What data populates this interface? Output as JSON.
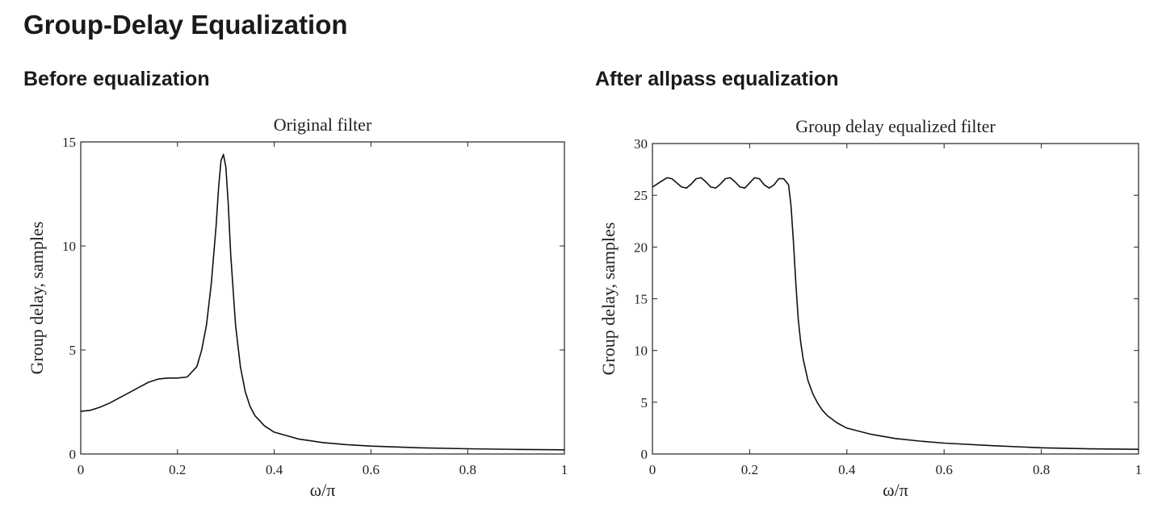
{
  "page": {
    "title": "Group-Delay Equalization"
  },
  "panels": [
    {
      "heading": "Before equalization"
    },
    {
      "heading": "After allpass equalization"
    }
  ],
  "chart_data": [
    {
      "type": "line",
      "title": "Original filter",
      "xlabel": "ω/π",
      "ylabel": "Group delay, samples",
      "xlim": [
        0,
        1
      ],
      "ylim": [
        0,
        15
      ],
      "xticks": [
        "0",
        "0.2",
        "0.4",
        "0.6",
        "0.8",
        "1"
      ],
      "yticks": [
        "0",
        "5",
        "10",
        "15"
      ],
      "grid": false,
      "series": [
        {
          "x": [
            0,
            0.02,
            0.04,
            0.06,
            0.08,
            0.1,
            0.12,
            0.14,
            0.16,
            0.18,
            0.2,
            0.22,
            0.24,
            0.25,
            0.26,
            0.27,
            0.28,
            0.285,
            0.29,
            0.295,
            0.3,
            0.305,
            0.31,
            0.32,
            0.33,
            0.34,
            0.35,
            0.36,
            0.38,
            0.4,
            0.45,
            0.5,
            0.55,
            0.6,
            0.7,
            0.8,
            0.9,
            1.0
          ],
          "values": [
            2.05,
            2.1,
            2.25,
            2.45,
            2.7,
            2.95,
            3.2,
            3.45,
            3.6,
            3.65,
            3.65,
            3.7,
            4.2,
            5.0,
            6.2,
            8.2,
            11.0,
            12.8,
            14.1,
            14.4,
            13.8,
            12.0,
            9.6,
            6.2,
            4.2,
            3.0,
            2.3,
            1.85,
            1.35,
            1.05,
            0.72,
            0.55,
            0.45,
            0.38,
            0.3,
            0.25,
            0.22,
            0.2
          ]
        }
      ]
    },
    {
      "type": "line",
      "title": "Group delay equalized filter",
      "xlabel": "ω/π",
      "ylabel": "Group delay, samples",
      "xlim": [
        0,
        1
      ],
      "ylim": [
        0,
        30
      ],
      "xticks": [
        "0",
        "0.2",
        "0.4",
        "0.6",
        "0.8",
        "1"
      ],
      "yticks": [
        "0",
        "5",
        "10",
        "15",
        "20",
        "25",
        "30"
      ],
      "grid": false,
      "series": [
        {
          "x": [
            0,
            0.01,
            0.02,
            0.03,
            0.04,
            0.05,
            0.06,
            0.07,
            0.08,
            0.09,
            0.1,
            0.11,
            0.12,
            0.13,
            0.14,
            0.15,
            0.16,
            0.17,
            0.18,
            0.19,
            0.2,
            0.21,
            0.22,
            0.23,
            0.24,
            0.25,
            0.26,
            0.27,
            0.28,
            0.285,
            0.29,
            0.295,
            0.3,
            0.305,
            0.31,
            0.32,
            0.33,
            0.34,
            0.35,
            0.36,
            0.38,
            0.4,
            0.45,
            0.5,
            0.55,
            0.6,
            0.7,
            0.8,
            0.9,
            1.0
          ],
          "values": [
            25.8,
            26.1,
            26.4,
            26.7,
            26.6,
            26.2,
            25.8,
            25.7,
            26.1,
            26.6,
            26.7,
            26.3,
            25.8,
            25.7,
            26.1,
            26.6,
            26.7,
            26.3,
            25.8,
            25.7,
            26.2,
            26.7,
            26.6,
            26.0,
            25.7,
            26.0,
            26.6,
            26.6,
            26.0,
            24.0,
            20.5,
            16.5,
            13.0,
            10.8,
            9.2,
            7.1,
            5.8,
            4.9,
            4.2,
            3.7,
            3.0,
            2.5,
            1.9,
            1.5,
            1.25,
            1.05,
            0.8,
            0.6,
            0.5,
            0.45
          ]
        }
      ]
    }
  ]
}
